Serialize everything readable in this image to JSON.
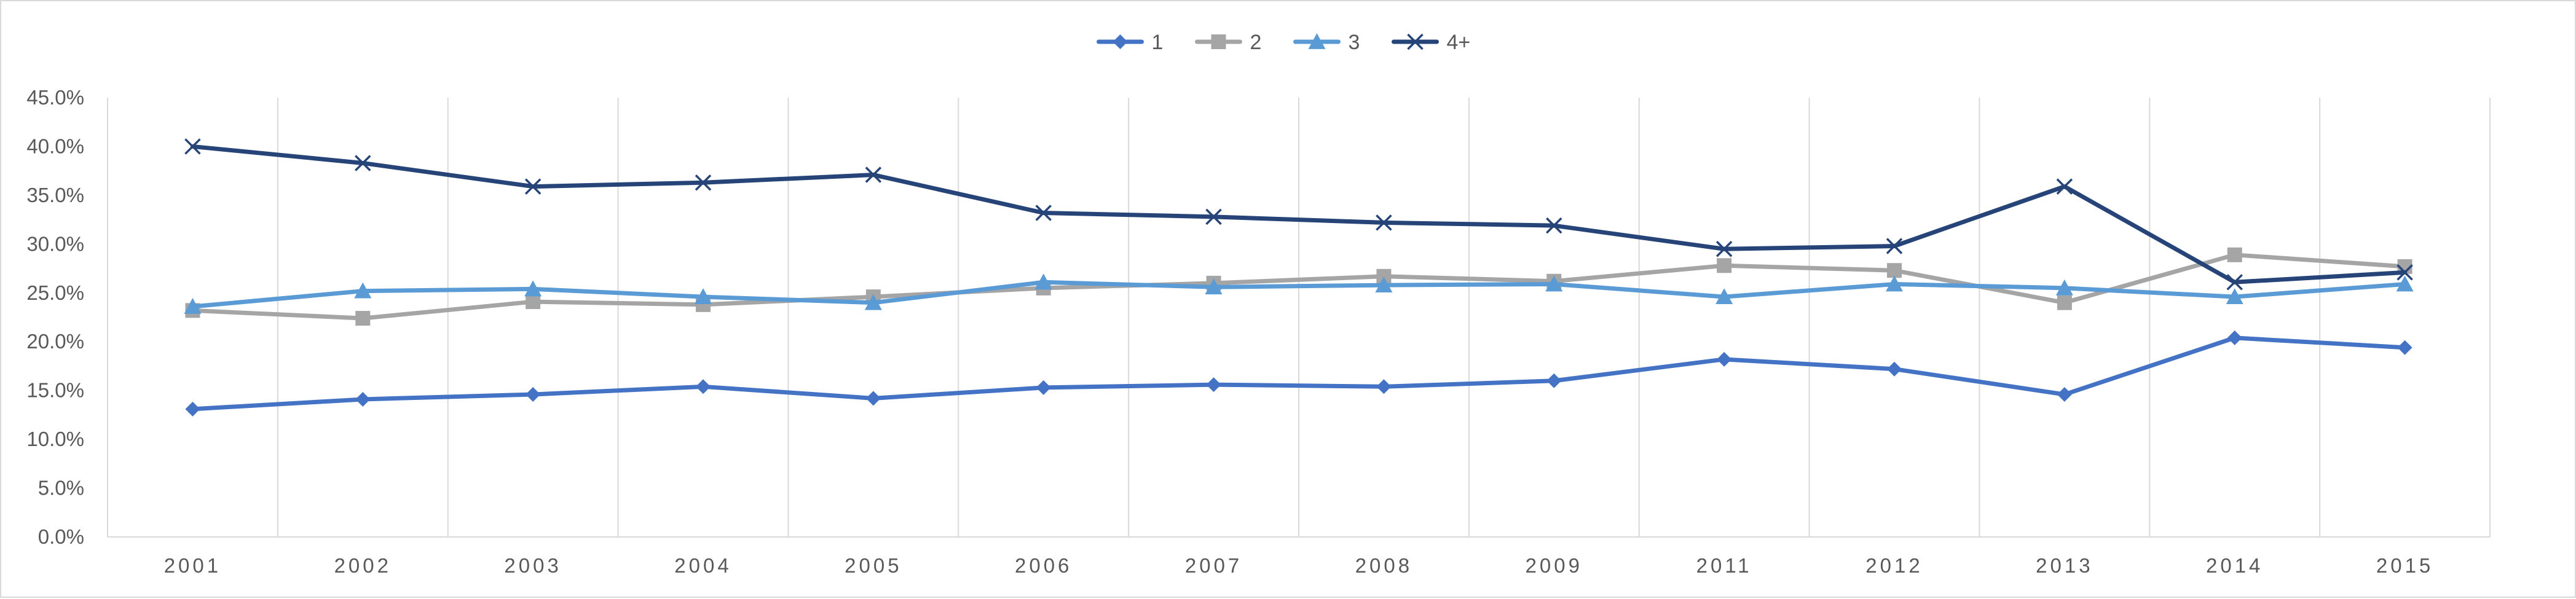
{
  "chart_data": {
    "type": "line",
    "title": "",
    "xlabel": "",
    "ylabel": "",
    "categories": [
      "2001",
      "2002",
      "2003",
      "2004",
      "2005",
      "2006",
      "2007",
      "2008",
      "2009",
      "2011",
      "2012",
      "2013",
      "2014",
      "2015"
    ],
    "ylim": [
      0,
      45
    ],
    "yticks": [
      0,
      5,
      10,
      15,
      20,
      25,
      30,
      35,
      40,
      45
    ],
    "ytick_labels": [
      "0.0%",
      "5.0%",
      "10.0%",
      "15.0%",
      "20.0%",
      "25.0%",
      "30.0%",
      "35.0%",
      "40.0%",
      "45.0%"
    ],
    "grid": "vertical",
    "legend_position": "top-center",
    "series": [
      {
        "name": "1",
        "marker": "diamond",
        "color": "#4472C4",
        "values": [
          13.1,
          14.1,
          14.6,
          15.4,
          14.2,
          15.3,
          15.6,
          15.4,
          16.0,
          18.2,
          17.2,
          14.6,
          20.4,
          19.4
        ]
      },
      {
        "name": "2",
        "marker": "square",
        "color": "#A5A5A5",
        "values": [
          23.2,
          22.4,
          24.1,
          23.8,
          24.6,
          25.5,
          26.0,
          26.7,
          26.2,
          27.8,
          27.3,
          24.0,
          28.9,
          27.7
        ]
      },
      {
        "name": "3",
        "marker": "triangle",
        "color": "#5B9BD5",
        "values": [
          23.6,
          25.2,
          25.4,
          24.6,
          24.0,
          26.1,
          25.6,
          25.8,
          25.9,
          24.6,
          25.9,
          25.5,
          24.6,
          25.9
        ]
      },
      {
        "name": "4+",
        "marker": "x",
        "color": "#264478",
        "values": [
          40.0,
          38.3,
          35.9,
          36.3,
          37.1,
          33.2,
          32.8,
          32.2,
          31.9,
          29.5,
          29.8,
          35.9,
          26.1,
          27.1
        ]
      }
    ]
  }
}
